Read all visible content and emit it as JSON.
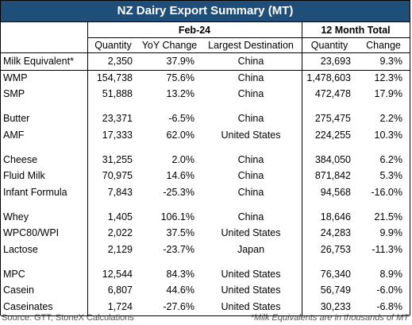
{
  "header": {
    "title": "NZ Dairy Export Summary (MT)",
    "groups": [
      "Feb-24",
      "12 Month Total"
    ],
    "columns": [
      "Quantity",
      "YoY Change",
      "Largest Destination",
      "Quantity",
      "Change"
    ]
  },
  "table": {
    "groups": [
      [
        [
          "Milk Equivalent*",
          "2,350",
          "37.9%",
          "China",
          "23,693",
          "9.3%"
        ]
      ],
      [
        [
          "WMP",
          "154,738",
          "75.6%",
          "China",
          "1,478,603",
          "12.3%"
        ],
        [
          "SMP",
          "51,888",
          "13.2%",
          "China",
          "472,478",
          "17.9%"
        ]
      ],
      [
        [
          "Butter",
          "23,371",
          "-6.5%",
          "China",
          "275,475",
          "2.2%"
        ],
        [
          "AMF",
          "17,333",
          "62.0%",
          "United States",
          "224,255",
          "10.3%"
        ]
      ],
      [
        [
          "Cheese",
          "31,255",
          "2.0%",
          "China",
          "384,050",
          "6.2%"
        ],
        [
          "Fluid Milk",
          "70,975",
          "14.6%",
          "China",
          "871,842",
          "5.3%"
        ],
        [
          "Infant Formula",
          "7,843",
          "-25.3%",
          "China",
          "94,568",
          "-16.0%"
        ]
      ],
      [
        [
          "Whey",
          "1,405",
          "106.1%",
          "China",
          "18,646",
          "21.5%"
        ],
        [
          "WPC80/WPI",
          "2,022",
          "37.5%",
          "United States",
          "24,283",
          "9.9%"
        ],
        [
          "Lactose",
          "2,129",
          "-23.7%",
          "Japan",
          "26,753",
          "-11.3%"
        ]
      ],
      [
        [
          "MPC",
          "12,544",
          "84.3%",
          "United States",
          "76,340",
          "8.9%"
        ],
        [
          "Casein",
          "6,807",
          "44.6%",
          "United States",
          "56,749",
          "-6.0%"
        ],
        [
          "Caseinates",
          "1,724",
          "-27.6%",
          "United States",
          "30,233",
          "-6.8%"
        ]
      ]
    ]
  },
  "footer": {
    "source": "Source: GTT, StoneX Calculations",
    "note": "*Milk Equivalents are in thousands of MT"
  }
}
